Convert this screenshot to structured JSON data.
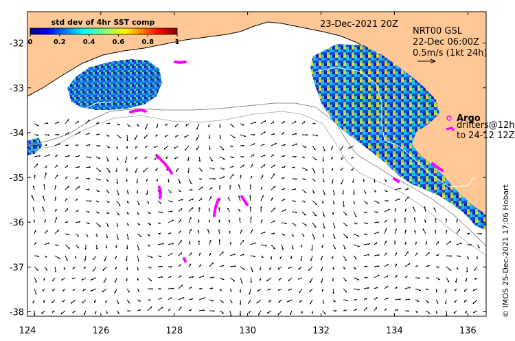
{
  "map": {
    "date_label": "23-Dec-2021 20Z",
    "product_label": "NRT00 GSL",
    "velocity_time": "22-Dec 06:00Z",
    "scale_label": "0.5m/s (1kt 24h)",
    "argo_label": "Argo",
    "drifters_label_1": "drifters@12h",
    "drifters_label_2": "to 24-12 12Z",
    "credit": "© IMOS 25-Dec-2021 17:06 Hobart",
    "colors": {
      "land": "#ffc896",
      "argo": "#ff00ff",
      "current": "#000000"
    }
  },
  "colorbar": {
    "title": "std dev of 4hr SST comp",
    "ticks": [
      "0",
      "0.2",
      "0.4",
      "0.6",
      "0.8",
      "1"
    ],
    "colormap": "jet"
  },
  "axes": {
    "x_ticks": [
      "124",
      "126",
      "128",
      "130",
      "132",
      "134",
      "136"
    ],
    "y_ticks": [
      "-32",
      "-33",
      "-34",
      "-35",
      "-36",
      "-37",
      "-38"
    ],
    "lon_range": [
      124,
      136.5
    ],
    "lat_range": [
      -38.1,
      -31.3
    ]
  }
}
